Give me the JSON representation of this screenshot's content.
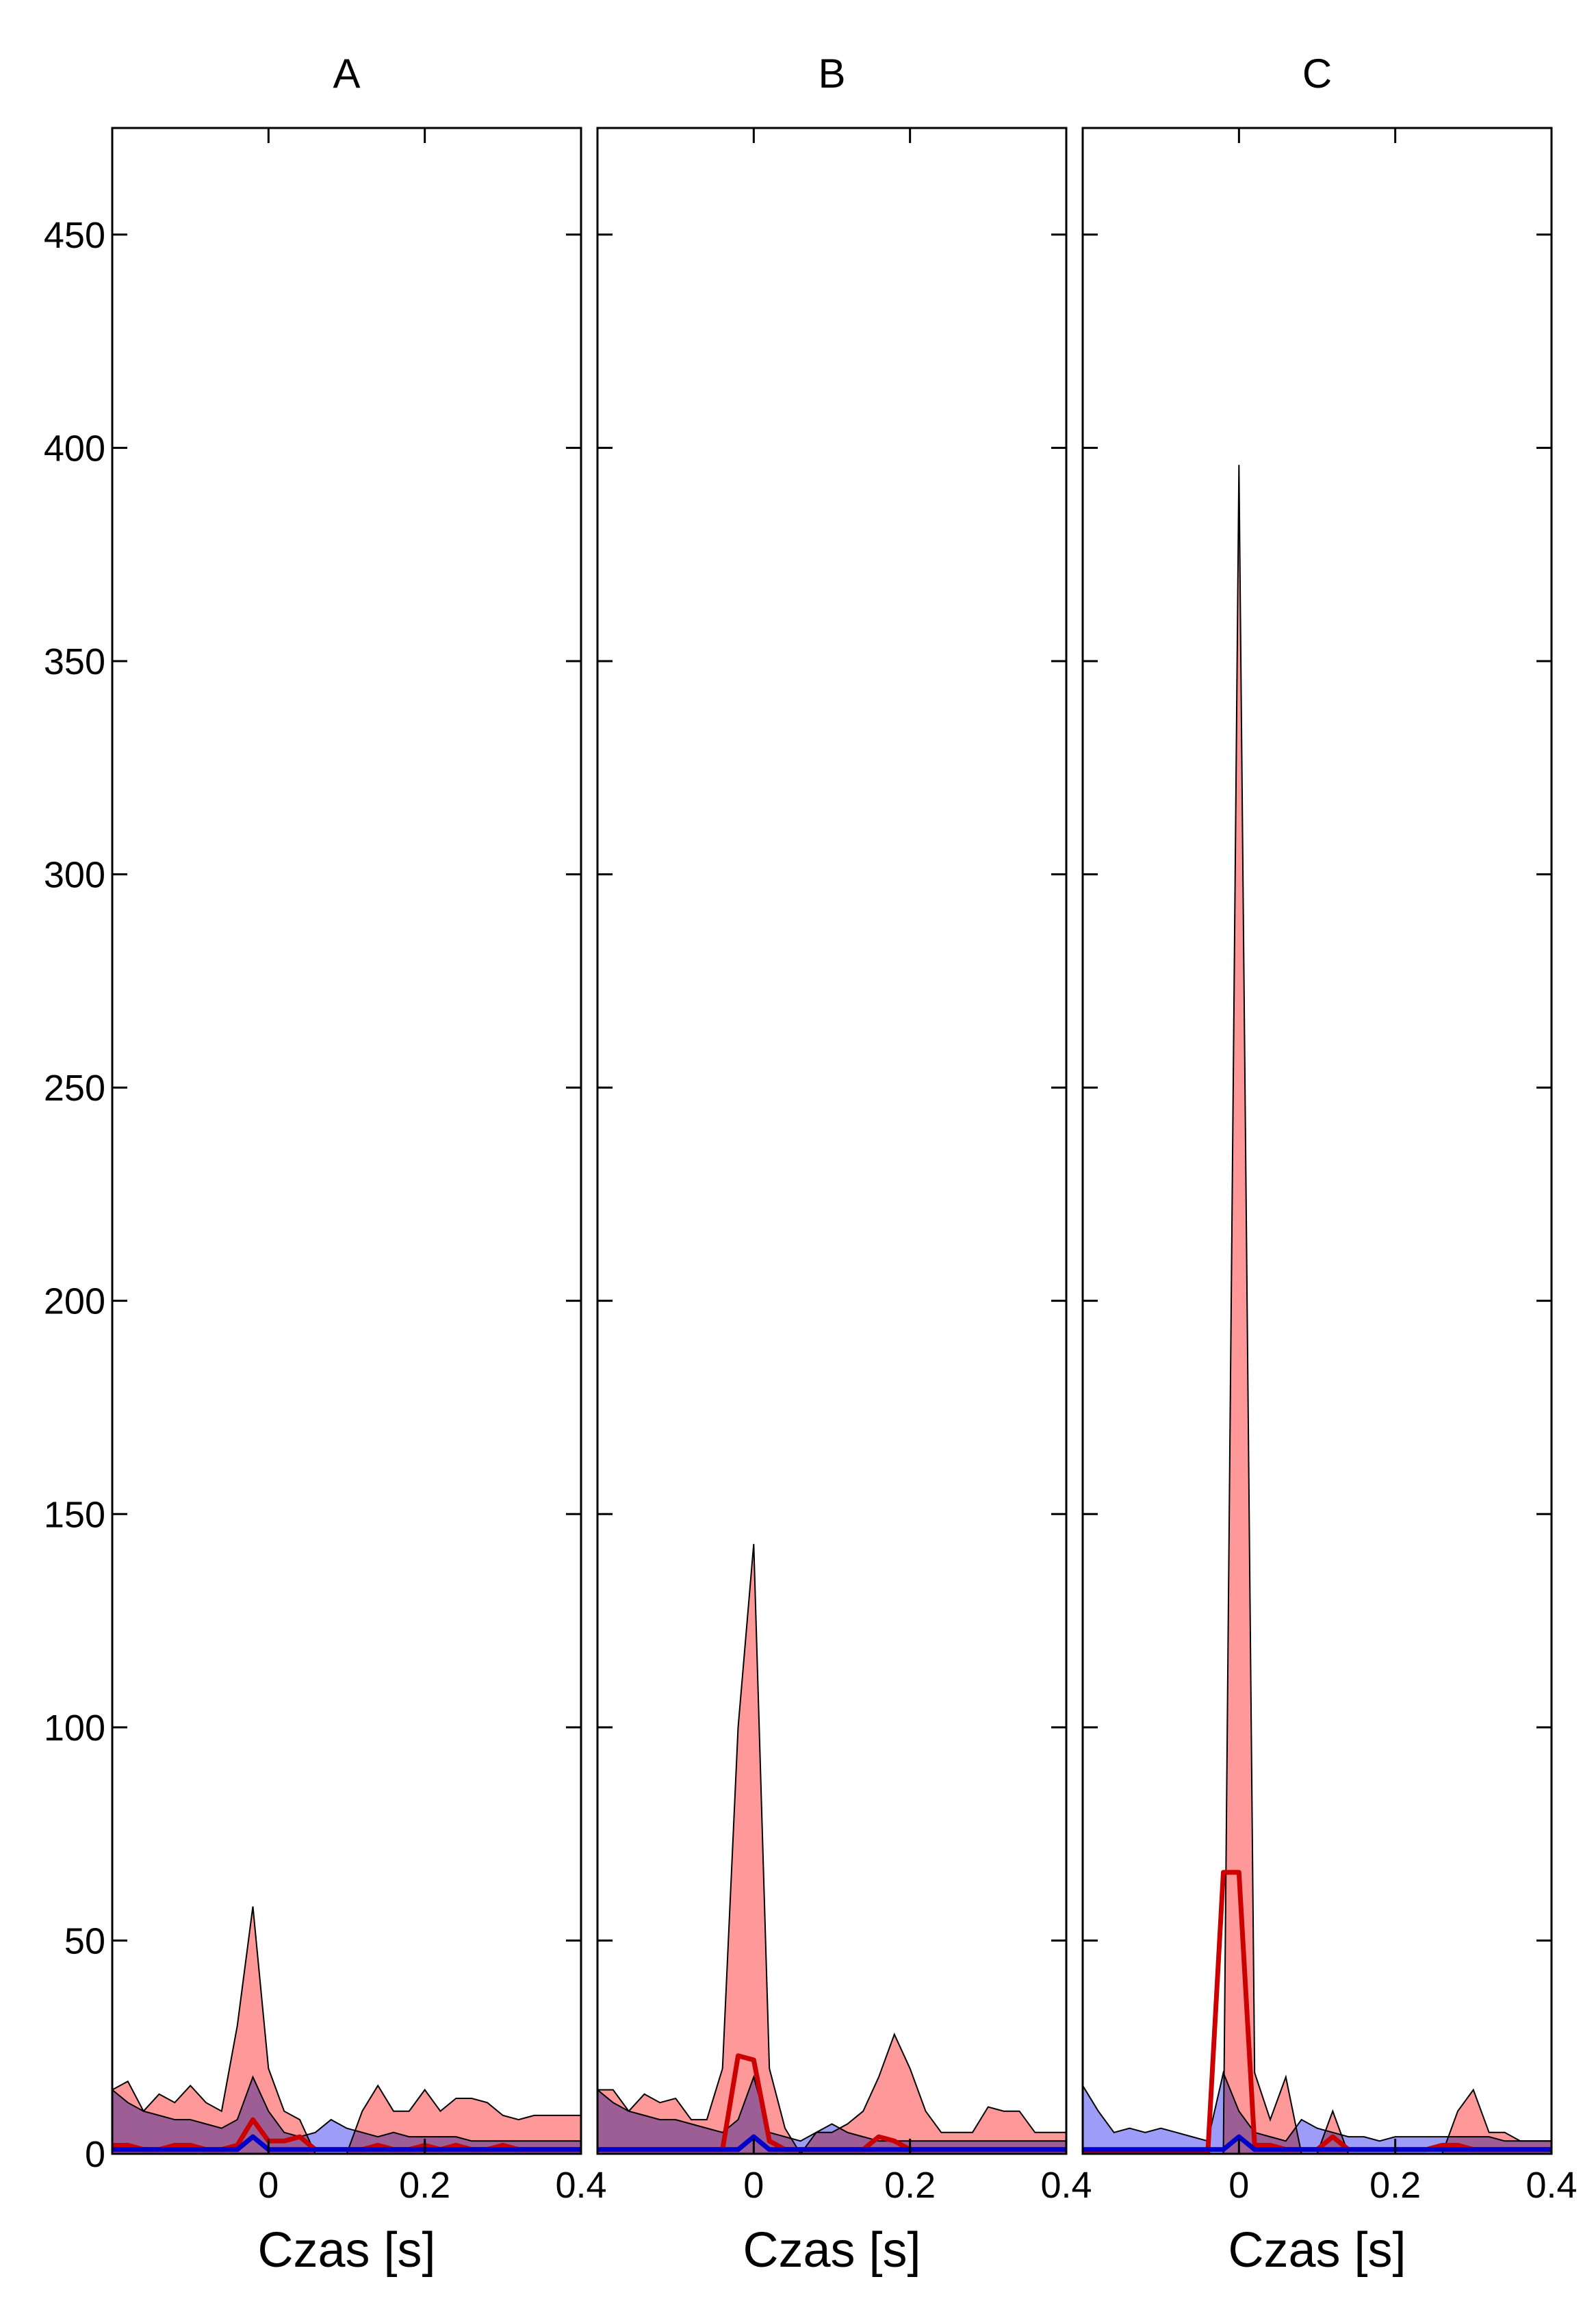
{
  "chart_data": [
    {
      "type": "area",
      "title": "A",
      "xlabel": "Czas [s]",
      "ylabel": "",
      "xlim": [
        -0.2,
        0.4
      ],
      "ylim": [
        0,
        475
      ],
      "x_ticks": [
        0,
        0.2,
        0.4
      ],
      "x_tick_labels": [
        "0",
        "0.2",
        "0.4"
      ],
      "y_ticks": [
        0,
        50,
        100,
        150,
        200,
        250,
        300,
        350,
        400,
        450
      ],
      "y_tick_labels": [
        "0",
        "50",
        "100",
        "150",
        "200",
        "250",
        "300",
        "350",
        "400",
        "450"
      ],
      "colors": {
        "red_band": "#ff9999",
        "blue_band": "#8c8cf7",
        "overlap_band": "#a768c9",
        "red_line": "#cc0000",
        "blue_line": "#0000cc",
        "outline": "#000000"
      },
      "x": [
        -0.2,
        -0.18,
        -0.16,
        -0.14,
        -0.12,
        -0.1,
        -0.08,
        -0.06,
        -0.04,
        -0.02,
        0.0,
        0.02,
        0.04,
        0.06,
        0.08,
        0.1,
        0.12,
        0.14,
        0.16,
        0.18,
        0.2,
        0.22,
        0.24,
        0.26,
        0.28,
        0.3,
        0.32,
        0.34,
        0.36,
        0.38,
        0.4
      ],
      "series": [
        {
          "values_upper": [
            15,
            17,
            10,
            14,
            12,
            16,
            12,
            10,
            30,
            58,
            20,
            10,
            8,
            0,
            0,
            0,
            10,
            16,
            10,
            10,
            15,
            10,
            13,
            13,
            12,
            9,
            8,
            9,
            9,
            9,
            9
          ],
          "values_lower": [
            0,
            0,
            0,
            0,
            0,
            0,
            0,
            0,
            0,
            0,
            0,
            0,
            0,
            0,
            0,
            0,
            0,
            0,
            0,
            0,
            0,
            0,
            0,
            0,
            0,
            0,
            0,
            0,
            0,
            0,
            0
          ]
        },
        {
          "values_upper": [
            15,
            12,
            10,
            9,
            8,
            8,
            7,
            6,
            8,
            18,
            10,
            5,
            4,
            5,
            8,
            6,
            5,
            4,
            5,
            4,
            4,
            4,
            4,
            3,
            3,
            3,
            3,
            3,
            3,
            3,
            3
          ],
          "values_lower": [
            0,
            0,
            0,
            0,
            0,
            0,
            0,
            0,
            0,
            0,
            0,
            0,
            0,
            0,
            0,
            0,
            0,
            0,
            0,
            0,
            0,
            0,
            0,
            0,
            0,
            0,
            0,
            0,
            0,
            0,
            0
          ]
        },
        {
          "values": [
            2,
            2,
            1,
            1,
            2,
            2,
            1,
            1,
            2,
            8,
            3,
            3,
            4,
            1,
            1,
            1,
            1,
            2,
            1,
            1,
            2,
            1,
            2,
            1,
            1,
            2,
            1,
            1,
            1,
            1,
            1
          ]
        },
        {
          "values": [
            1,
            1,
            1,
            1,
            1,
            1,
            1,
            1,
            1,
            4,
            1,
            1,
            1,
            1,
            1,
            1,
            1,
            1,
            1,
            1,
            1,
            1,
            1,
            1,
            1,
            1,
            1,
            1,
            1,
            1,
            1
          ]
        }
      ]
    },
    {
      "type": "area",
      "title": "B",
      "xlabel": "Czas [s]",
      "ylabel": "",
      "xlim": [
        -0.2,
        0.4
      ],
      "ylim": [
        0,
        475
      ],
      "x_ticks": [
        0,
        0.2,
        0.4
      ],
      "x_tick_labels": [
        "0",
        "0.2",
        "0.4"
      ],
      "y_ticks": [
        0,
        50,
        100,
        150,
        200,
        250,
        300,
        350,
        400,
        450
      ],
      "y_tick_labels": [
        "",
        "",
        "",
        "",
        "",
        "",
        "",
        "",
        "",
        ""
      ],
      "colors": {
        "red_band": "#ff9999",
        "blue_band": "#8c8cf7",
        "overlap_band": "#a768c9",
        "red_line": "#cc0000",
        "blue_line": "#0000cc",
        "outline": "#000000"
      },
      "x": [
        -0.2,
        -0.18,
        -0.16,
        -0.14,
        -0.12,
        -0.1,
        -0.08,
        -0.06,
        -0.04,
        -0.02,
        0.0,
        0.02,
        0.04,
        0.06,
        0.08,
        0.1,
        0.12,
        0.14,
        0.16,
        0.18,
        0.2,
        0.22,
        0.24,
        0.26,
        0.28,
        0.3,
        0.32,
        0.34,
        0.36,
        0.38,
        0.4
      ],
      "series": [
        {
          "values_upper": [
            15,
            15,
            10,
            14,
            12,
            13,
            8,
            8,
            20,
            100,
            143,
            20,
            6,
            0,
            5,
            5,
            7,
            10,
            18,
            28,
            20,
            10,
            5,
            5,
            5,
            11,
            10,
            10,
            5,
            5,
            5
          ],
          "values_lower": [
            0,
            0,
            0,
            0,
            0,
            0,
            0,
            0,
            0,
            0,
            0,
            0,
            0,
            0,
            0,
            0,
            0,
            0,
            0,
            0,
            0,
            0,
            0,
            0,
            0,
            0,
            0,
            0,
            0,
            0,
            0
          ]
        },
        {
          "values_upper": [
            15,
            12,
            10,
            9,
            8,
            8,
            7,
            6,
            5,
            8,
            18,
            5,
            4,
            3,
            5,
            7,
            5,
            4,
            3,
            3,
            3,
            3,
            3,
            3,
            3,
            3,
            3,
            3,
            3,
            3,
            3
          ],
          "values_lower": [
            0,
            0,
            0,
            0,
            0,
            0,
            0,
            0,
            0,
            0,
            0,
            0,
            0,
            0,
            0,
            0,
            0,
            0,
            0,
            0,
            0,
            0,
            0,
            0,
            0,
            0,
            0,
            0,
            0,
            0,
            0
          ]
        },
        {
          "values": [
            1,
            1,
            1,
            1,
            1,
            1,
            1,
            1,
            1,
            23,
            22,
            3,
            1,
            1,
            1,
            1,
            1,
            1,
            4,
            3,
            1,
            1,
            1,
            1,
            1,
            1,
            1,
            1,
            1,
            1,
            1
          ]
        },
        {
          "values": [
            1,
            1,
            1,
            1,
            1,
            1,
            1,
            1,
            1,
            1,
            4,
            1,
            1,
            1,
            1,
            1,
            1,
            1,
            1,
            1,
            1,
            1,
            1,
            1,
            1,
            1,
            1,
            1,
            1,
            1,
            1
          ]
        }
      ]
    },
    {
      "type": "area",
      "title": "C",
      "xlabel": "Czas [s]",
      "ylabel": "",
      "xlim": [
        -0.2,
        0.4
      ],
      "ylim": [
        0,
        475
      ],
      "x_ticks": [
        0,
        0.2,
        0.4
      ],
      "x_tick_labels": [
        "0",
        "0.2",
        "0.4"
      ],
      "y_ticks": [
        0,
        50,
        100,
        150,
        200,
        250,
        300,
        350,
        400,
        450
      ],
      "y_tick_labels": [
        "",
        "",
        "",
        "",
        "",
        "",
        "",
        "",
        "",
        ""
      ],
      "colors": {
        "red_band": "#ff9999",
        "blue_band": "#8c8cf7",
        "overlap_band": "#a768c9",
        "red_line": "#cc0000",
        "blue_line": "#0000cc",
        "outline": "#000000"
      },
      "x": [
        -0.2,
        -0.18,
        -0.16,
        -0.14,
        -0.12,
        -0.1,
        -0.08,
        -0.06,
        -0.04,
        -0.02,
        0.0,
        0.02,
        0.04,
        0.06,
        0.08,
        0.1,
        0.12,
        0.14,
        0.16,
        0.18,
        0.2,
        0.22,
        0.24,
        0.26,
        0.28,
        0.3,
        0.32,
        0.34,
        0.36,
        0.38,
        0.4
      ],
      "series": [
        {
          "values_upper": [
            0,
            0,
            0,
            0,
            0,
            0,
            0,
            0,
            0,
            0,
            396,
            19,
            8,
            18,
            0,
            0,
            10,
            0,
            0,
            0,
            0,
            0,
            0,
            0,
            10,
            15,
            5,
            5,
            3,
            3,
            3
          ],
          "values_lower": [
            0,
            0,
            0,
            0,
            0,
            0,
            0,
            0,
            0,
            0,
            0,
            0,
            0,
            0,
            0,
            0,
            0,
            0,
            0,
            0,
            0,
            0,
            0,
            0,
            0,
            0,
            0,
            0,
            0,
            0,
            0
          ]
        },
        {
          "values_upper": [
            16,
            10,
            5,
            6,
            5,
            6,
            5,
            4,
            3,
            19,
            10,
            5,
            4,
            3,
            8,
            6,
            5,
            4,
            4,
            3,
            4,
            4,
            4,
            4,
            4,
            4,
            4,
            3,
            3,
            3,
            3
          ],
          "values_lower": [
            0,
            0,
            0,
            0,
            0,
            0,
            0,
            0,
            0,
            0,
            0,
            0,
            0,
            0,
            0,
            0,
            0,
            0,
            0,
            0,
            0,
            0,
            0,
            0,
            0,
            0,
            0,
            0,
            0,
            0,
            0
          ]
        },
        {
          "values": [
            0,
            0,
            0,
            0,
            0,
            0,
            0,
            0,
            0,
            66,
            66,
            2,
            2,
            1,
            1,
            1,
            4,
            1,
            1,
            1,
            1,
            1,
            1,
            2,
            2,
            1,
            1,
            1,
            1,
            1,
            1
          ]
        },
        {
          "values": [
            1,
            1,
            1,
            1,
            1,
            1,
            1,
            1,
            1,
            1,
            4,
            1,
            1,
            1,
            1,
            1,
            1,
            1,
            1,
            1,
            1,
            1,
            1,
            1,
            1,
            1,
            1,
            1,
            1,
            1,
            1
          ]
        }
      ]
    }
  ]
}
